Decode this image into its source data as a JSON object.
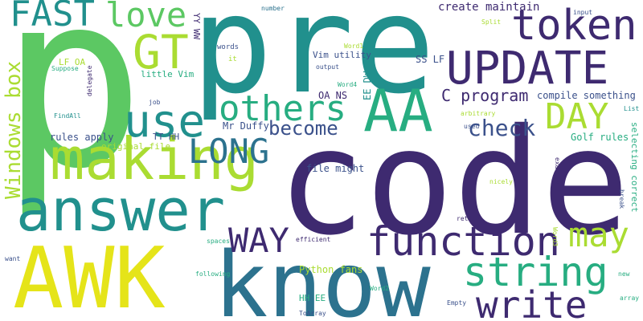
{
  "words": {
    "pre": "pre",
    "p": "p",
    "code": "code",
    "know": "know",
    "AWK": "AWK",
    "answer": "answer",
    "making": "making",
    "UPDATE": "UPDATE",
    "token": "token",
    "AA": "AA",
    "function": "function",
    "string": "string",
    "write": "write",
    "use": "use",
    "GT": "GT",
    "love": "love",
    "FAST": "FAST",
    "others": "others",
    "DAY": "DAY",
    "LONG": "LONG",
    "WAY": "WAY",
    "may": "may",
    "check": "check",
    "become": "become",
    "windows_box": "Windows box",
    "c_program": "C program",
    "create_maintain": "create maintain",
    "python_fans": "Python fans",
    "file_might": "file might",
    "rules_apply": "rules apply",
    "original_file": "original file",
    "tt_hh": "TT HH",
    "mr_duffy": "Mr Duffy",
    "golf_rules": "Golf rules",
    "compile_something": "compile something",
    "selecting_correct": "selecting correct",
    "vim_utility": "Vim utility",
    "ss_lf": "SS LF",
    "oa_ns": "OA NS",
    "ee_dw": "EE DW",
    "hh_ee": "HH EE",
    "lf_oa": "LF OA",
    "little_vim": "little Vim",
    "yy_ww": "YY WW",
    "words": "words",
    "number": "number",
    "input": "input",
    "split": "Split",
    "word1": "Word1",
    "word2": "Word2",
    "word3": "Word3",
    "word4": "Word4",
    "output": "output",
    "it": "it",
    "suppose": "Suppose",
    "delegate": "delegate",
    "job": "job",
    "findall": "FindAll",
    "list": "List",
    "used": "used",
    "arbitrary": "arbitrary",
    "exactly": "exactly",
    "nicely": "nicely",
    "break": "break",
    "return": "return",
    "spaces": "spaces",
    "efficient": "efficient",
    "following": "following",
    "want": "want",
    "toarray": "ToArray",
    "empty": "Empty",
    "new": "new",
    "array": "array"
  },
  "colors": {
    "purple": "#472c7a",
    "indigo": "#3b518b",
    "blue": "#2c728e",
    "teal": "#21908d",
    "green": "#27ad81",
    "light_green": "#5cc863",
    "lime": "#aadc32",
    "yellow": "#e5e419"
  }
}
